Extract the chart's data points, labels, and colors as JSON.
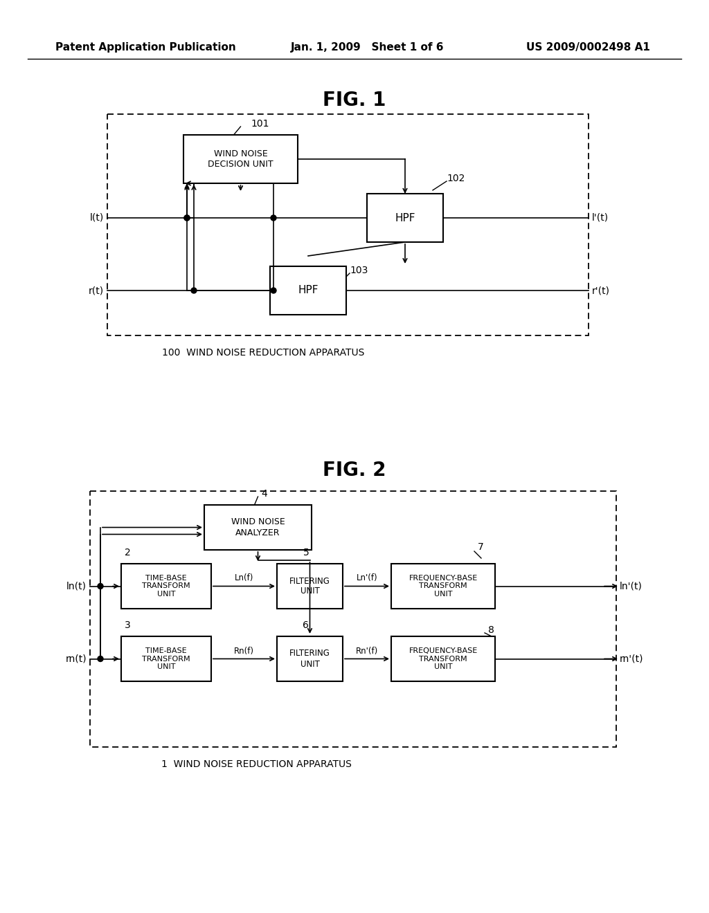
{
  "header_left": "Patent Application Publication",
  "header_mid": "Jan. 1, 2009   Sheet 1 of 6",
  "header_right": "US 2009/0002498 A1",
  "fig1_title": "FIG. 1",
  "fig2_title": "FIG. 2",
  "fig1_label": "100  WIND NOISE REDUCTION APPARATUS",
  "fig2_label": "1  WIND NOISE REDUCTION APPARATUS",
  "bg_color": "#ffffff",
  "box_color": "#000000",
  "text_color": "#000000"
}
